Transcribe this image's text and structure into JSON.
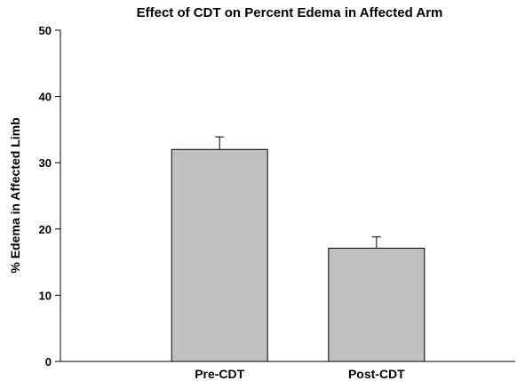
{
  "chart_data": {
    "type": "bar",
    "title": "Effect of CDT on Percent Edema in Affected Arm",
    "y_label": "% Edema in Affected Limb",
    "categories": [
      "Pre-CDT",
      "Post-CDT"
    ],
    "values": [
      32,
      17.1
    ],
    "errors": [
      1.9,
      1.7
    ],
    "color": "#c0c0c0",
    "ylim": [
      0,
      50
    ],
    "yticks": [
      0,
      10,
      20,
      30,
      40,
      50
    ],
    "grid": false
  }
}
